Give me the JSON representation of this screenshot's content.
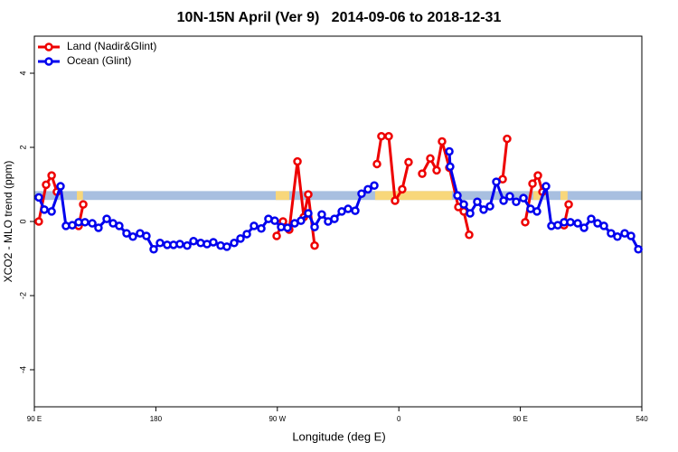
{
  "chart_data": {
    "type": "line",
    "title": "10N-15N April (Ver 9)   2014-09-06 to 2018-12-31",
    "xlabel": "Longitude (deg E)",
    "ylabel": "XCO2 - MLO trend (ppm)",
    "xlim": [
      90,
      540
    ],
    "xticks": [
      {
        "value": 90,
        "label": "90 E"
      },
      180,
      {
        "value": 270,
        "label": "90 W"
      },
      {
        "value": 360,
        "label": "0"
      },
      {
        "value": 450,
        "label": "90 E"
      },
      540
    ],
    "ylim": [
      -5,
      5
    ],
    "yticks": [
      -4,
      -2,
      0,
      2,
      4
    ],
    "legend": "top-left",
    "band": {
      "y": [
        0.58,
        0.82
      ],
      "color": "#a8bfe0",
      "highlight_color": "#f8d77a",
      "highlight_x": [
        [
          121.5,
          126
        ],
        [
          268.8,
          278.8
        ],
        [
          342.4,
          399.4
        ],
        [
          459.6,
          466.4
        ],
        [
          479.7,
          485
        ]
      ]
    },
    "series": [
      {
        "name": "Land (Nadir&Glint)",
        "color": "#ee0000",
        "x": [
          93.3,
          98.7,
          102.8,
          106.7,
          115,
          122.8,
          126.2,
          200,
          269.5,
          274.2,
          278.8,
          284.9,
          289.6,
          292.9,
          297.6,
          330,
          343.8,
          347.1,
          352.5,
          357.2,
          362.5,
          367.2,
          372,
          377.3,
          383.3,
          388,
          392,
          397.4,
          404.1,
          408.1,
          412.1,
          425,
          436.9,
          440.2,
          445,
          453.6,
          459,
          463,
          466.4,
          470,
          482.4,
          485.8
        ],
        "values": [
          0,
          0.99,
          1.24,
          0.8,
          null,
          -0.12,
          0.46,
          null,
          -0.39,
          0,
          -0.22,
          1.62,
          0.12,
          0.73,
          -0.65,
          null,
          1.55,
          2.3,
          2.3,
          0.56,
          0.87,
          1.6,
          null,
          1.29,
          1.7,
          1.38,
          2.16,
          1.45,
          0.39,
          0.27,
          -0.36,
          null,
          1.14,
          2.23,
          null,
          -0.02,
          1.02,
          1.24,
          0.8,
          null,
          -0.1,
          0.46
        ]
      },
      {
        "name": "Ocean (Glint)",
        "color": "#0000ee",
        "x": [
          93.3,
          97.4,
          102.8,
          109.4,
          113.4,
          118.1,
          122.8,
          127.5,
          132.9,
          137.5,
          143.6,
          148.3,
          152.9,
          158.3,
          163,
          168.3,
          173,
          178.4,
          183.1,
          188.4,
          193.1,
          197.8,
          203.2,
          207.9,
          213.2,
          217.9,
          222.6,
          228,
          232.6,
          238,
          242.7,
          247.4,
          252.7,
          258.1,
          263.4,
          268.1,
          272.8,
          277.5,
          282.8,
          287.5,
          292.9,
          297.6,
          302.9,
          307.6,
          312.3,
          317.7,
          322.4,
          327.7,
          332.4,
          337.1,
          341.8,
          370,
          397.4,
          398,
          403.4,
          408.1,
          412.8,
          418.1,
          422.8,
          427.5,
          432.2,
          437.6,
          442.2,
          446.9,
          452.3,
          457.6,
          462.3,
          469,
          473,
          477.7,
          482.4,
          487.1,
          492.5,
          497.2,
          502.5,
          507.2,
          511.9,
          517.2,
          521.9,
          527.3,
          532,
          537.4
        ],
        "values": [
          0.65,
          0.32,
          0.27,
          0.95,
          -0.12,
          -0.1,
          -0.02,
          -0.02,
          -0.05,
          -0.17,
          0.07,
          -0.05,
          -0.12,
          -0.32,
          -0.41,
          -0.32,
          -0.39,
          -0.75,
          -0.58,
          -0.63,
          -0.63,
          -0.61,
          -0.65,
          -0.53,
          -0.58,
          -0.61,
          -0.56,
          -0.65,
          -0.68,
          -0.58,
          -0.46,
          -0.34,
          -0.12,
          -0.19,
          0.07,
          0.02,
          -0.15,
          -0.17,
          -0.05,
          0.02,
          0.22,
          -0.15,
          0.19,
          0,
          0.07,
          0.27,
          0.34,
          0.29,
          0.75,
          0.87,
          0.97,
          null,
          1.89,
          1.48,
          0.7,
          0.46,
          0.22,
          0.53,
          0.32,
          0.41,
          1.07,
          0.56,
          0.68,
          0.53,
          0.63,
          0.34,
          0.27,
          0.95,
          -0.12,
          -0.1,
          -0.02,
          -0.02,
          -0.05,
          -0.17,
          0.07,
          -0.05,
          -0.12,
          -0.32,
          -0.41,
          -0.32,
          -0.39,
          -0.75
        ]
      }
    ]
  }
}
